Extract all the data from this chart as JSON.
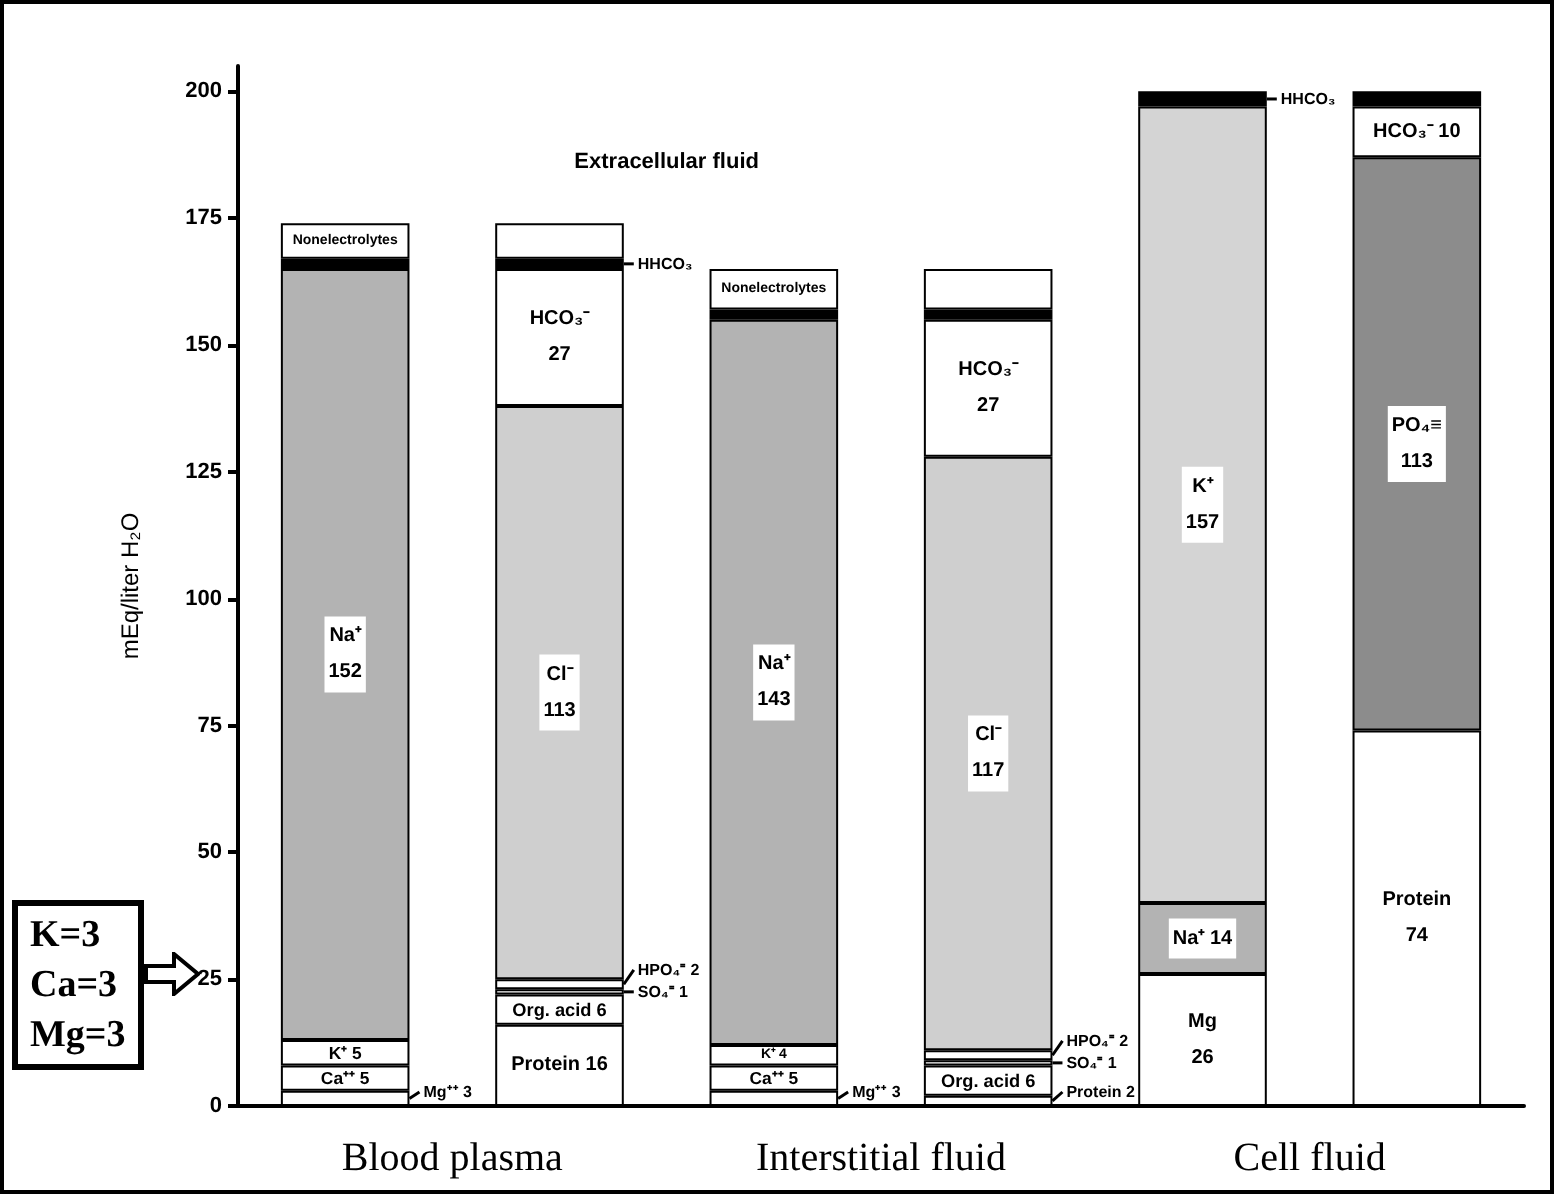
{
  "chart_data": {
    "type": "bar",
    "stacked": true,
    "ylabel": "mEq/liter H₂O",
    "categories": [
      "Blood plasma",
      null,
      "Interstitial fluid",
      null,
      "Cell fluid",
      null
    ],
    "ylim": [
      0,
      205
    ],
    "yticks": [
      0,
      25,
      50,
      75,
      100,
      125,
      150,
      175,
      200
    ],
    "annotations": [
      "Extracellular fluid",
      "K=3\nCa=3\nMg=3"
    ],
    "series": [
      {
        "color": "#ffffff",
        "values": [
          3,
          null,
          3,
          null,
          26,
          null
        ],
        "value_labels": [
          "Mg⁺⁺ 3",
          null,
          "Mg⁺⁺ 3",
          null,
          "Mg 26",
          null
        ]
      },
      {
        "color": "#ffffff",
        "values": [
          5,
          null,
          5,
          null,
          null,
          null
        ],
        "value_labels": [
          "Ca⁺⁺ 5",
          null,
          "Ca⁺⁺ 5",
          null,
          null,
          null
        ]
      },
      {
        "color": "#ffffff",
        "values": [
          5,
          null,
          4,
          null,
          null,
          null
        ],
        "value_labels": [
          "K⁺ 5",
          null,
          "K⁺ 4",
          null,
          null,
          null
        ]
      },
      {
        "color": "#b3b3b3",
        "values": [
          152,
          null,
          143,
          null,
          14,
          null
        ],
        "value_labels": [
          "Na⁺ 152",
          null,
          "Na⁺ 143",
          null,
          "Na⁺ 14",
          null
        ]
      },
      {
        "color": "#d4d4d4",
        "values": [
          null,
          null,
          null,
          null,
          157,
          null
        ],
        "value_labels": [
          null,
          null,
          null,
          null,
          "K⁺ 157",
          null
        ]
      },
      {
        "color": "#ffffff",
        "values": [
          null,
          16,
          null,
          2,
          null,
          74
        ],
        "value_labels": [
          null,
          "Protein 16",
          null,
          "Protein 2",
          null,
          "Protein 74"
        ]
      },
      {
        "color": "#ffffff",
        "values": [
          null,
          6,
          null,
          6,
          null,
          null
        ],
        "value_labels": [
          null,
          "Org. acid 6",
          null,
          "Org. acid 6",
          null,
          null
        ]
      },
      {
        "color": "#ffffff",
        "values": [
          null,
          1,
          null,
          1,
          null,
          null
        ],
        "value_labels": [
          null,
          "SO₄⁼ 1",
          null,
          "SO₄⁼ 1",
          null,
          null
        ]
      },
      {
        "color": "#ffffff",
        "values": [
          null,
          2,
          null,
          2,
          null,
          null
        ],
        "value_labels": [
          null,
          "HPO₄⁼ 2",
          null,
          "HPO₄⁼ 2",
          null,
          null
        ]
      },
      {
        "color": "#cfcfcf",
        "values": [
          null,
          113,
          null,
          117,
          null,
          null
        ],
        "value_labels": [
          null,
          "Cl⁻ 113",
          null,
          "Cl⁻ 117",
          null,
          null
        ]
      },
      {
        "color": "#8c8c8c",
        "values": [
          null,
          null,
          null,
          null,
          null,
          113
        ],
        "value_labels": [
          null,
          null,
          null,
          null,
          null,
          "PO₄≡ 113"
        ]
      },
      {
        "color": "#ffffff",
        "values": [
          null,
          27,
          null,
          27,
          null,
          10
        ],
        "value_labels": [
          null,
          "HCO₃⁻ 27",
          null,
          "HCO₃⁻ 27",
          null,
          "HCO₃⁻ 10"
        ]
      },
      {
        "color": "#000000",
        "values": [
          2,
          2,
          2,
          2,
          3,
          3
        ],
        "value_labels": [
          null,
          "HHCO₃",
          null,
          null,
          "HHCO₃",
          null
        ]
      },
      {
        "color": "#ffffff",
        "values": [
          7,
          7,
          8,
          8,
          null,
          null
        ],
        "value_labels": [
          "Nonelectrolytes",
          null,
          "Nonelectrolytes",
          null,
          null,
          null
        ]
      }
    ]
  }
}
